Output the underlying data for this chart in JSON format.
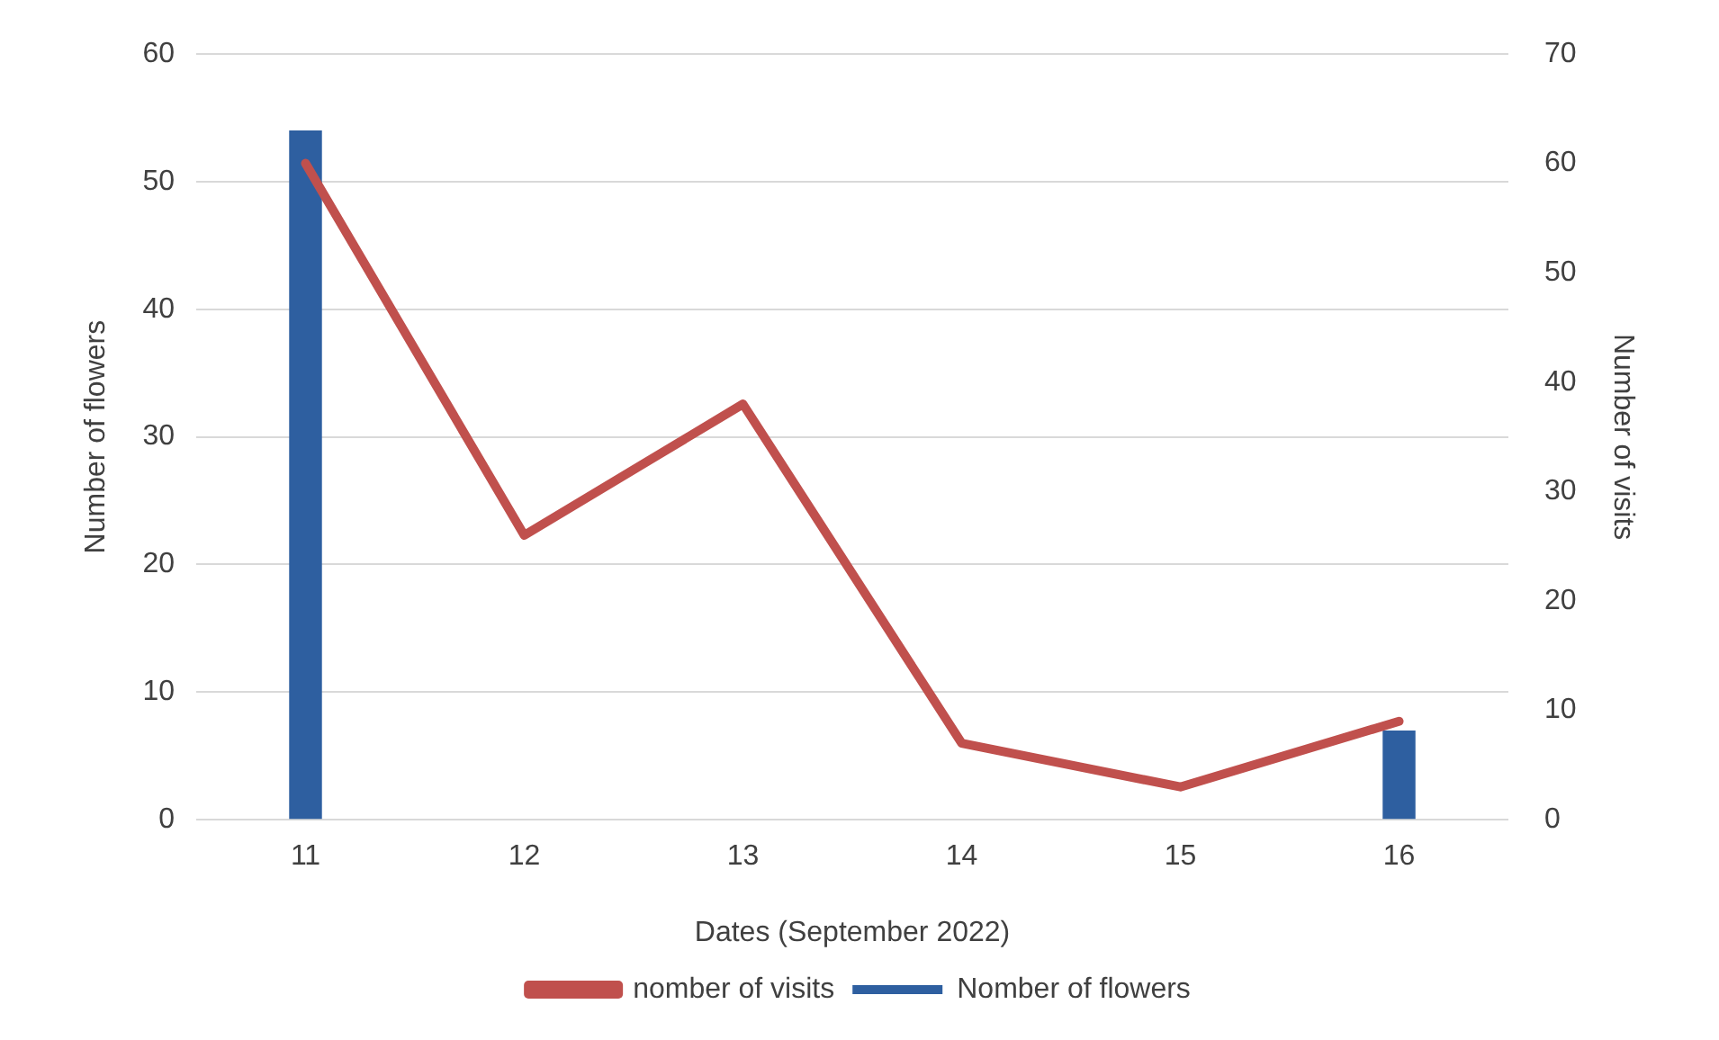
{
  "chart_data": {
    "type": "bar",
    "xlabel": "Dates (September 2022)",
    "ylabel": "Number of flowers",
    "y2label": "Number of visits",
    "categories": [
      "11",
      "12",
      "13",
      "14",
      "15",
      "16"
    ],
    "series": [
      {
        "name": "Nomber of flowers",
        "color": "#2e5fa0",
        "values": [
          54,
          null,
          null,
          null,
          null,
          7
        ]
      },
      {
        "name": "nomber of visits",
        "type": "line",
        "axis": "y2",
        "color": "#c0504d",
        "values": [
          60,
          26,
          38,
          7,
          3,
          9
        ]
      }
    ],
    "ylim": [
      0,
      60
    ],
    "yticks": [
      0,
      10,
      20,
      30,
      40,
      50,
      60
    ],
    "y2lim": [
      0,
      70
    ],
    "y2ticks": [
      0,
      10,
      20,
      30,
      40,
      50,
      60,
      70
    ],
    "grid": "y",
    "legend": "bottom",
    "marker": "none"
  }
}
